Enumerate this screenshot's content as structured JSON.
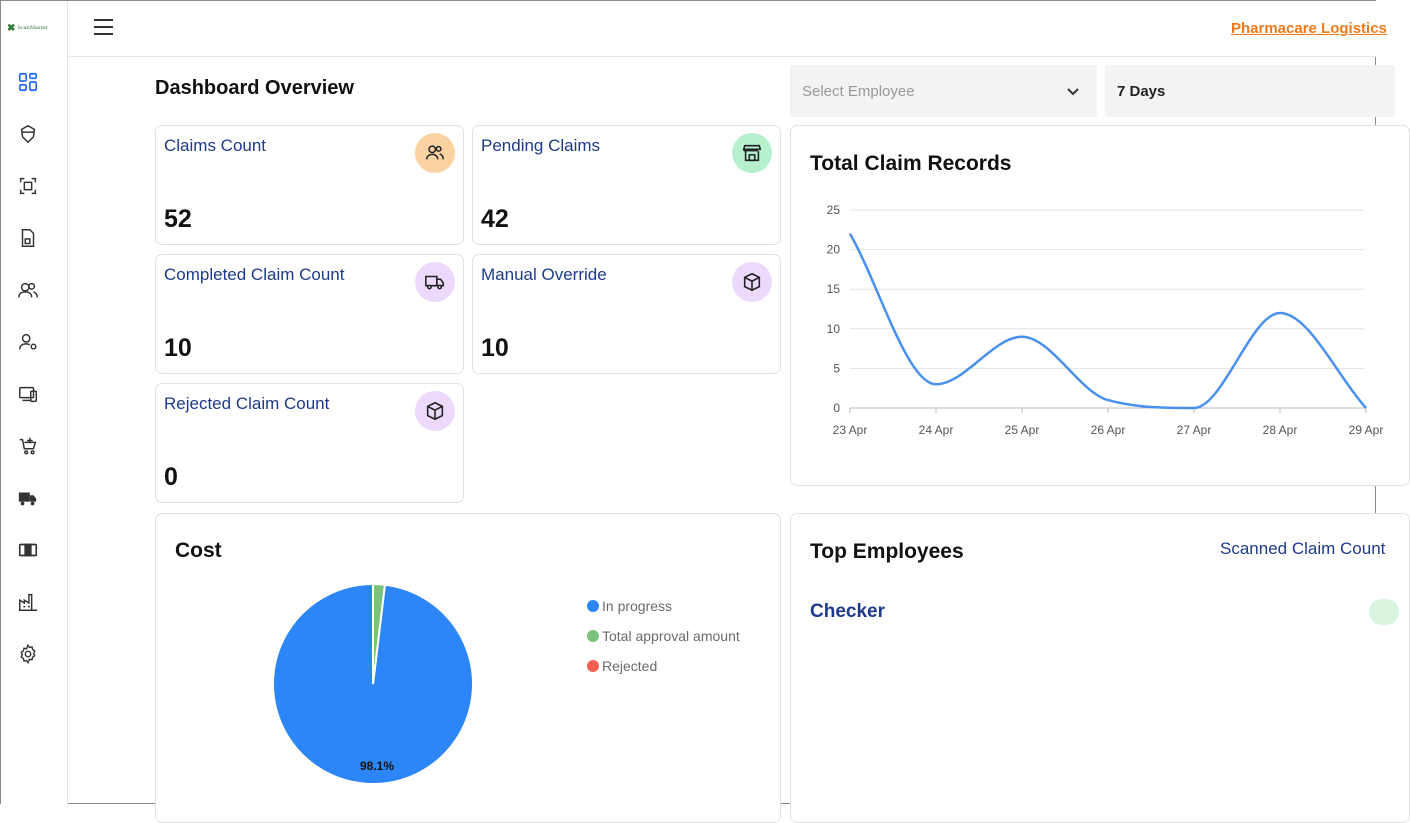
{
  "app": {
    "logo_text": "ScanMaster",
    "company_name": "Pharmacare Logistics"
  },
  "sidebar": {
    "items": [
      {
        "name": "dashboard-icon"
      },
      {
        "name": "shield-icon"
      },
      {
        "name": "scan-icon"
      },
      {
        "name": "document-icon"
      },
      {
        "name": "users-icon"
      },
      {
        "name": "user-settings-icon"
      },
      {
        "name": "devices-icon"
      },
      {
        "name": "cart-icon"
      },
      {
        "name": "truck-icon"
      },
      {
        "name": "box-icon"
      },
      {
        "name": "factory-icon"
      },
      {
        "name": "gear-icon"
      }
    ],
    "accent_color": "#1e66f5"
  },
  "header": {
    "title": "Dashboard Overview",
    "employee_select_placeholder": "Select Employee",
    "days_select_value": "7 Days"
  },
  "stats": [
    {
      "label": "Claims Count",
      "value": "52",
      "icon": "users-icon",
      "badge_color": "#fbd3a2"
    },
    {
      "label": "Pending Claims",
      "value": "42",
      "icon": "store-icon",
      "badge_color": "#b6f0cf"
    },
    {
      "label": "Completed Claim Count",
      "value": "10",
      "icon": "truck-icon",
      "badge_color": "#ecd9fb"
    },
    {
      "label": "Manual Override",
      "value": "10",
      "icon": "box-icon",
      "badge_color": "#ecd9fb"
    },
    {
      "label": "Rejected Claim Count",
      "value": "0",
      "icon": "box-icon",
      "badge_color": "#ecd9fb"
    }
  ],
  "line_panel": {
    "title": "Total Claim Records"
  },
  "cost_panel": {
    "title": "Cost",
    "slice_label": "98.1%"
  },
  "employees_panel": {
    "title": "Top Employees",
    "column_label": "Scanned Claim Count",
    "employee_name": "Checker"
  },
  "chart_data": [
    {
      "type": "line",
      "title": "Total Claim Records",
      "x": [
        "23 Apr",
        "24 Apr",
        "25 Apr",
        "26 Apr",
        "27 Apr",
        "28 Apr",
        "29 Apr"
      ],
      "series": [
        {
          "values": [
            22,
            3,
            9,
            1,
            0,
            12,
            0
          ],
          "color": "#4a90f0"
        }
      ],
      "ylim": [
        0,
        25
      ],
      "yticks": [
        0,
        5,
        10,
        15,
        20,
        25
      ],
      "grid": true
    },
    {
      "type": "pie",
      "title": "Cost",
      "labels": [
        "In progress",
        "Total approval amount",
        "Rejected"
      ],
      "values": [
        98.1,
        1.9,
        0
      ],
      "colors": [
        "#2d86f7",
        "#7cc27c",
        "#f56151"
      ],
      "data_labels": [
        "98.1%",
        "",
        ""
      ],
      "legend": "right"
    }
  ]
}
